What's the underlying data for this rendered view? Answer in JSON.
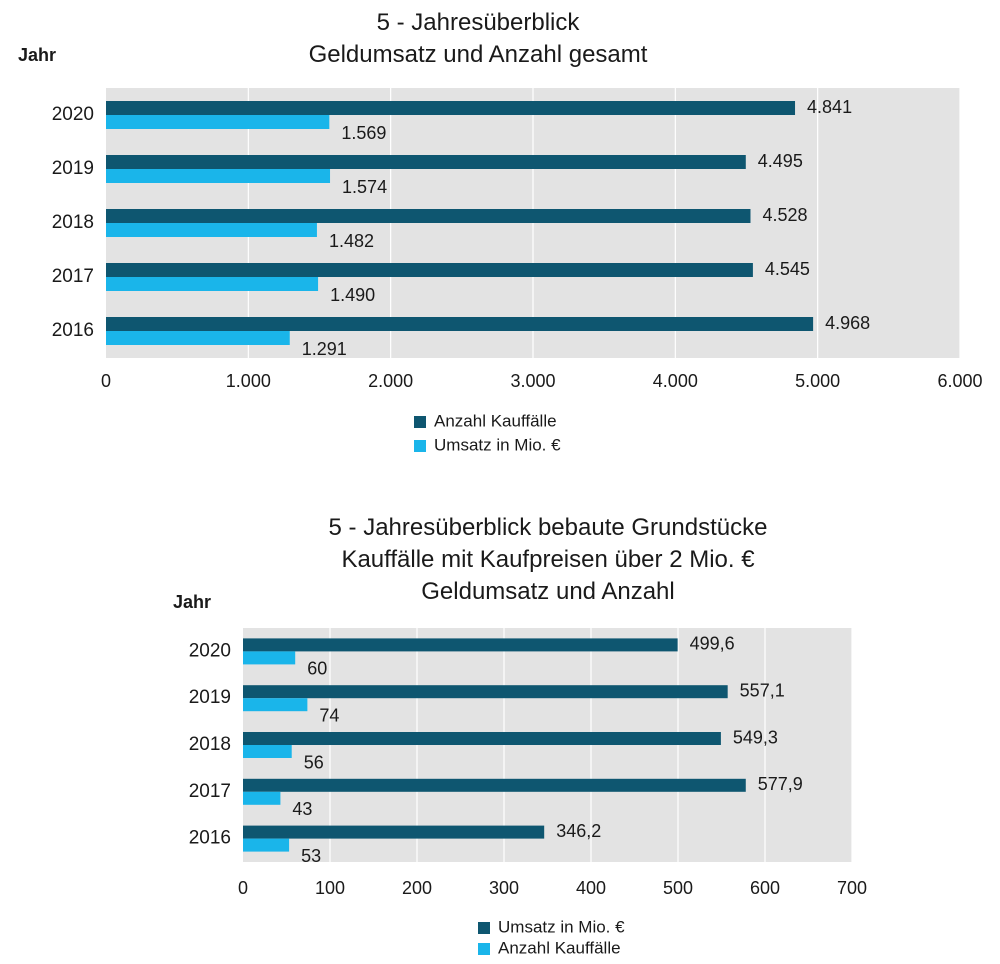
{
  "chart_data": [
    {
      "type": "bar",
      "orientation": "horizontal",
      "title_lines": [
        "5 - Jahresüberblick",
        "Geldumsatz  und  Anzahl  gesamt"
      ],
      "ylabel": "Jahr",
      "categories": [
        "2020",
        "2019",
        "2018",
        "2017",
        "2016"
      ],
      "series": [
        {
          "name": "Anzahl Kauffälle",
          "color": "#0e5670",
          "values": [
            4841,
            4495,
            4528,
            4545,
            4968
          ],
          "labels": [
            "4.841",
            "4.495",
            "4.528",
            "4.545",
            "4.968"
          ]
        },
        {
          "name": "Umsatz in Mio. €",
          "color": "#1ab5ea",
          "values": [
            1569,
            1574,
            1482,
            1490,
            1291
          ],
          "labels": [
            "1.569",
            "1.574",
            "1.482",
            "1.490",
            "1.291"
          ]
        }
      ],
      "xlim": [
        0,
        6000
      ],
      "xticks": [
        0,
        1000,
        2000,
        3000,
        4000,
        5000,
        6000
      ],
      "xtick_labels": [
        "0",
        "1.000",
        "2.000",
        "3.000",
        "4.000",
        "5.000",
        "6.000"
      ],
      "grid": true,
      "background": "#e3e3e3",
      "legend_position": "bottom"
    },
    {
      "type": "bar",
      "orientation": "horizontal",
      "title_lines": [
        "5 - Jahresüberblick bebaute Grundstücke",
        "Kauffälle mit Kaufpreisen über 2 Mio. €",
        "Geldumsatz und Anzahl"
      ],
      "ylabel": "Jahr",
      "categories": [
        "2020",
        "2019",
        "2018",
        "2017",
        "2016"
      ],
      "series": [
        {
          "name": "Umsatz in Mio. €",
          "color": "#0e5670",
          "values": [
            499.6,
            557.1,
            549.3,
            577.9,
            346.2
          ],
          "labels": [
            "499,6",
            "557,1",
            "549,3",
            "577,9",
            "346,2"
          ]
        },
        {
          "name": "Anzahl Kauffälle",
          "color": "#1ab5ea",
          "values": [
            60,
            74,
            56,
            43,
            53
          ],
          "labels": [
            "60",
            "74",
            "56",
            "43",
            "53"
          ]
        }
      ],
      "xlim": [
        0,
        700
      ],
      "xticks": [
        0,
        100,
        200,
        300,
        400,
        500,
        600,
        700
      ],
      "xtick_labels": [
        "0",
        "100",
        "200",
        "300",
        "400",
        "500",
        "600",
        "700"
      ],
      "grid": true,
      "background": "#e3e3e3",
      "legend_position": "bottom"
    }
  ]
}
